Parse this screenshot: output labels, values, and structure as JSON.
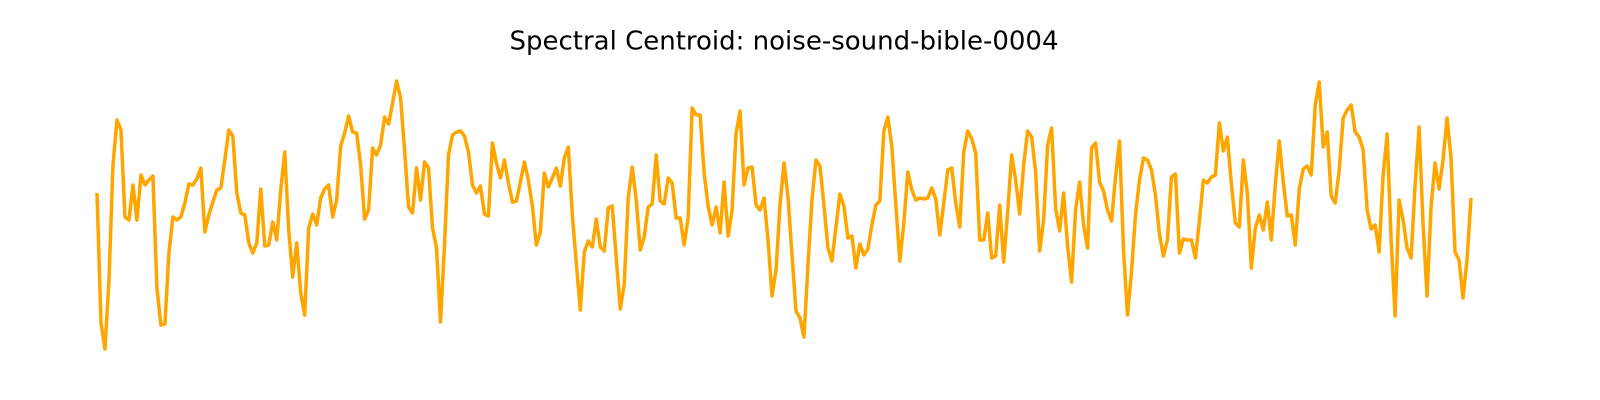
{
  "chart_data": {
    "type": "line",
    "title": "Spectral Centroid: noise-sound-bible-0004",
    "color": "#ffa500",
    "values": [
      207,
      77,
      51,
      120,
      235,
      280,
      270,
      183,
      180,
      215,
      180,
      225,
      215,
      220,
      224,
      112,
      75,
      76,
      147,
      183,
      180,
      183,
      197,
      216,
      215,
      221,
      232,
      168,
      185,
      198,
      210,
      212,
      240,
      270,
      264,
      207,
      187,
      185,
      157,
      147,
      157,
      211,
      154,
      155,
      178,
      160,
      210,
      248,
      170,
      123,
      157,
      107,
      85,
      172,
      186,
      175,
      202,
      211,
      215,
      183,
      200,
      254,
      267,
      284,
      268,
      267,
      235,
      181,
      190,
      252,
      245,
      255,
      283,
      276,
      297,
      319,
      302,
      250,
      193,
      187,
      232,
      200,
      238,
      232,
      172,
      152,
      78,
      155,
      245,
      265,
      268,
      269,
      264,
      248,
      215,
      207,
      214,
      186,
      184,
      257,
      237,
      222,
      240,
      217,
      198,
      199,
      218,
      238,
      220,
      194,
      155,
      168,
      227,
      213,
      222,
      232,
      214,
      242,
      253,
      185,
      137,
      90,
      148,
      159,
      153,
      181,
      153,
      149,
      192,
      194,
      142,
      91,
      116,
      202,
      233,
      200,
      150,
      163,
      193,
      196,
      245,
      199,
      196,
      222,
      217,
      182,
      182,
      155,
      182,
      292,
      285,
      285,
      227,
      194,
      175,
      193,
      167,
      218,
      164,
      190,
      267,
      289,
      215,
      232,
      233,
      195,
      190,
      202,
      160,
      104,
      130,
      195,
      237,
      203,
      145,
      89,
      82,
      63,
      135,
      200,
      240,
      234,
      195,
      152,
      139,
      173,
      206,
      194,
      162,
      164,
      132,
      156,
      145,
      151,
      175,
      195,
      199,
      269,
      283,
      253,
      195,
      139,
      177,
      228,
      210,
      200,
      202,
      201,
      202,
      212,
      201,
      165,
      197,
      230,
      232,
      197,
      173,
      248,
      269,
      261,
      247,
      160,
      160,
      187,
      142,
      144,
      195,
      138,
      188,
      245,
      220,
      186,
      235,
      269,
      263,
      228,
      149,
      180,
      255,
      272,
      192,
      169,
      207,
      154,
      118,
      190,
      218,
      175,
      152,
      252,
      257,
      218,
      209,
      190,
      179,
      223,
      259,
      150,
      85,
      128,
      185,
      220,
      242,
      240,
      230,
      205,
      166,
      144,
      160,
      223,
      226,
      147,
      161,
      160,
      160,
      142,
      179,
      220,
      217,
      223,
      225,
      277,
      249,
      263,
      216,
      177,
      173,
      240,
      207,
      132,
      172,
      185,
      170,
      198,
      160,
      215,
      259,
      218,
      184,
      185,
      155,
      211,
      231,
      234,
      225,
      295,
      318,
      253,
      268,
      204,
      197,
      230,
      282,
      290,
      295,
      268,
      263,
      250,
      190,
      171,
      175,
      148,
      225,
      266,
      160,
      84,
      200,
      180,
      152,
      142,
      215,
      273,
      175,
      104,
      193,
      237,
      211,
      240,
      282,
      242,
      148,
      140,
      102,
      140,
      202
    ]
  }
}
